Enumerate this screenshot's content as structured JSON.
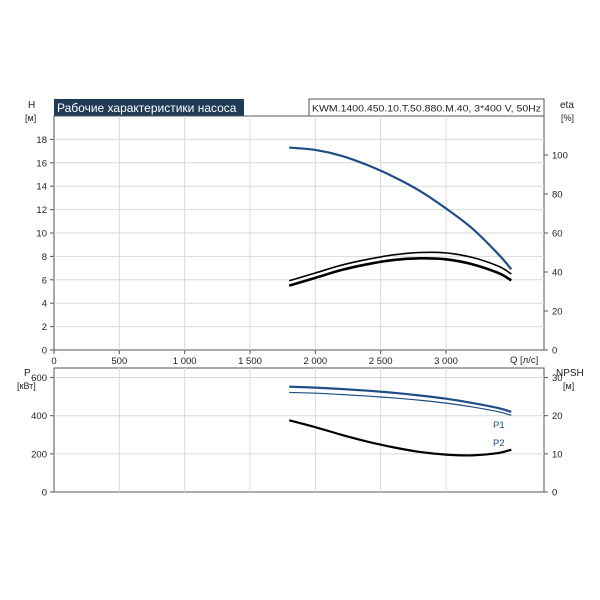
{
  "header": {
    "title": "Рабочие характеристики насоса",
    "model": "KWM.1400.450.10.T.50.880.M.40, 3*400 V, 50Hz",
    "title_bg": "#1f3b56"
  },
  "top_axes": {
    "left_label": "H",
    "left_unit": "[м]",
    "right_label": "eta",
    "right_unit": "[%]",
    "x_label": "Q [л/с]",
    "x_ticks": [
      "0",
      "500",
      "1 000",
      "1 500",
      "2 000",
      "2 500",
      "3 000"
    ],
    "y_ticks": [
      "0",
      "2",
      "4",
      "6",
      "8",
      "10",
      "12",
      "14",
      "16",
      "18"
    ],
    "eta_ticks": [
      "0",
      "20",
      "40",
      "60",
      "80",
      "100"
    ]
  },
  "bottom_axes": {
    "left_label": "P",
    "left_unit": "[кВт]",
    "right_label": "NPSH",
    "right_unit": "[м]",
    "y_ticks": [
      "0",
      "200",
      "400",
      "600"
    ],
    "npsh_ticks": [
      "0",
      "10",
      "20",
      "30"
    ],
    "series_labels": {
      "p1": "P1",
      "p2": "P2"
    }
  },
  "colors": {
    "head": "#1f4e85",
    "eta_outline": "#000000",
    "power": "#1f4e85",
    "npsh": "#000000",
    "grid": "#d9d9d9",
    "axis": "#555555"
  },
  "chart_data": [
    {
      "type": "line",
      "panel": "top",
      "xlim": [
        0,
        3750
      ],
      "ylim": [
        0,
        20
      ],
      "y2lim": [
        0,
        120
      ],
      "series": [
        {
          "role": "head",
          "x": [
            1800,
            2000,
            2200,
            2400,
            2600,
            2800,
            3000,
            3200,
            3400,
            3500
          ],
          "values": [
            17.3,
            17.1,
            16.6,
            15.8,
            14.8,
            13.6,
            12.1,
            10.4,
            8.2,
            6.9
          ]
        },
        {
          "role": "eta-upper",
          "axis": "y2",
          "x": [
            1800,
            2000,
            2200,
            2400,
            2600,
            2800,
            3000,
            3200,
            3400,
            3500
          ],
          "values": [
            35.5,
            39.5,
            43.5,
            46.5,
            48.8,
            50.0,
            49.8,
            47.5,
            43.0,
            39.0
          ]
        },
        {
          "role": "eta-lower",
          "axis": "y2",
          "x": [
            1800,
            2000,
            2200,
            2400,
            2600,
            2800,
            3000,
            3200,
            3400,
            3500
          ],
          "values": [
            33.0,
            37.0,
            41.0,
            44.0,
            46.2,
            47.0,
            46.5,
            44.0,
            39.5,
            35.7
          ]
        }
      ]
    },
    {
      "type": "line",
      "panel": "bottom",
      "xlim": [
        0,
        3750
      ],
      "ylim": [
        0,
        650
      ],
      "y2lim": [
        0,
        32.5
      ],
      "series": [
        {
          "name": "P1",
          "x": [
            1800,
            2000,
            2200,
            2400,
            2600,
            2800,
            3000,
            3200,
            3400,
            3500
          ],
          "values": [
            552,
            547,
            540,
            531,
            520,
            506,
            489,
            467,
            440,
            420
          ]
        },
        {
          "name": "P2",
          "x": [
            1800,
            2000,
            2200,
            2400,
            2600,
            2800,
            3000,
            3200,
            3400,
            3500
          ],
          "values": [
            522,
            518,
            511,
            503,
            493,
            481,
            466,
            446,
            421,
            402
          ]
        },
        {
          "role": "npsh",
          "axis": "y2",
          "x": [
            1800,
            2000,
            2200,
            2400,
            2600,
            2800,
            3000,
            3200,
            3400,
            3500
          ],
          "values": [
            18.8,
            17.0,
            15.0,
            13.2,
            11.7,
            10.5,
            9.8,
            9.6,
            10.2,
            11.1
          ]
        }
      ]
    }
  ]
}
